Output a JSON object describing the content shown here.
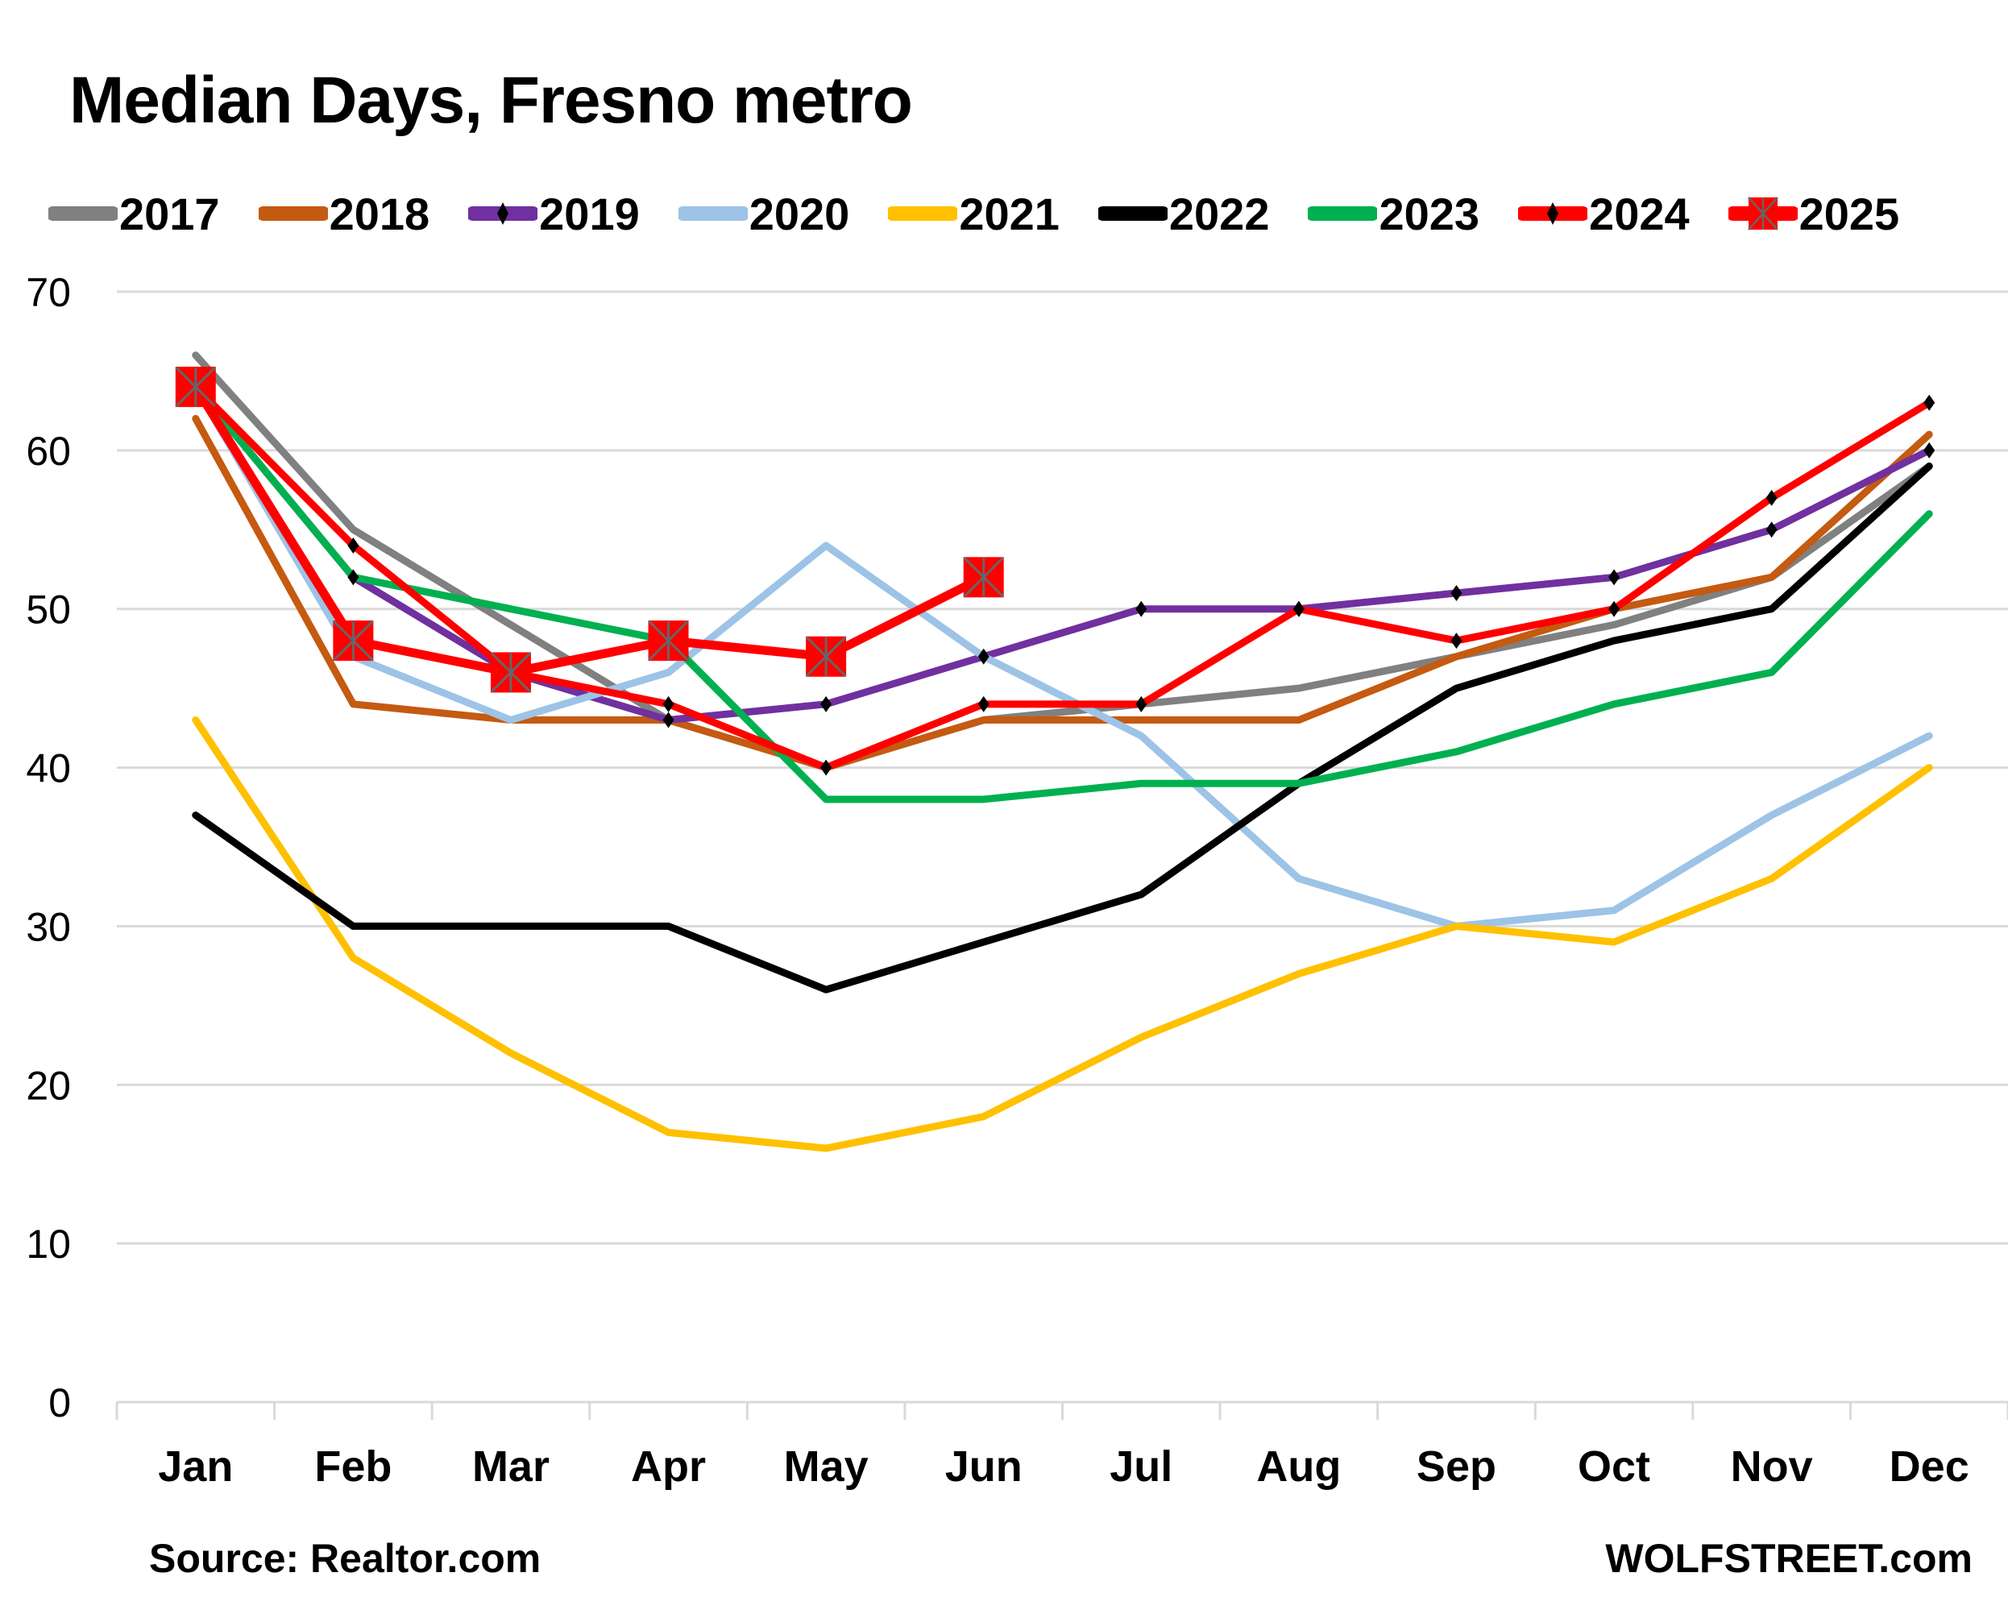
{
  "chart_data": {
    "type": "line",
    "title": "Median Days, Fresno metro",
    "xlabel": "",
    "ylabel": "",
    "categories": [
      "Jan",
      "Feb",
      "Mar",
      "Apr",
      "May",
      "Jun",
      "Jul",
      "Aug",
      "Sep",
      "Oct",
      "Nov",
      "Dec"
    ],
    "ylim": [
      0,
      70
    ],
    "yticks": [
      0,
      10,
      20,
      30,
      40,
      50,
      60,
      70
    ],
    "grid": true,
    "legend_position": "top",
    "series": [
      {
        "name": "2017",
        "color": "#808080",
        "marker": "none",
        "values": [
          66,
          55,
          49,
          43,
          40,
          43,
          44,
          45,
          47,
          49,
          52,
          59
        ]
      },
      {
        "name": "2018",
        "color": "#C55A11",
        "marker": "none",
        "values": [
          62,
          44,
          43,
          43,
          40,
          43,
          43,
          43,
          47,
          50,
          52,
          61
        ]
      },
      {
        "name": "2019",
        "color": "#7030A0",
        "marker": "diamond",
        "values": [
          64,
          52,
          46,
          43,
          44,
          47,
          50,
          50,
          51,
          52,
          55,
          60
        ]
      },
      {
        "name": "2020",
        "color": "#9DC3E6",
        "marker": "none",
        "values": [
          64,
          47,
          43,
          46,
          54,
          47,
          42,
          33,
          30,
          31,
          37,
          42
        ]
      },
      {
        "name": "2021",
        "color": "#FFC000",
        "marker": "none",
        "values": [
          43,
          28,
          22,
          17,
          16,
          18,
          23,
          27,
          30,
          29,
          33,
          40
        ]
      },
      {
        "name": "2022",
        "color": "#000000",
        "marker": "none",
        "values": [
          37,
          30,
          30,
          30,
          26,
          29,
          32,
          39,
          45,
          48,
          50,
          59
        ]
      },
      {
        "name": "2023",
        "color": "#00B050",
        "marker": "none",
        "values": [
          64,
          52,
          50,
          48,
          38,
          38,
          39,
          39,
          41,
          44,
          46,
          56
        ]
      },
      {
        "name": "2024",
        "color": "#FF0000",
        "marker": "diamond",
        "values": [
          64,
          54,
          46,
          44,
          40,
          44,
          44,
          50,
          48,
          50,
          57,
          63
        ]
      },
      {
        "name": "2025",
        "color": "#FF0000",
        "marker": "square-x",
        "values": [
          64,
          48,
          46,
          48,
          47,
          52
        ]
      }
    ]
  },
  "footer": {
    "source": "Source: Realtor.com",
    "brand": "WOLFSTREET.com"
  }
}
